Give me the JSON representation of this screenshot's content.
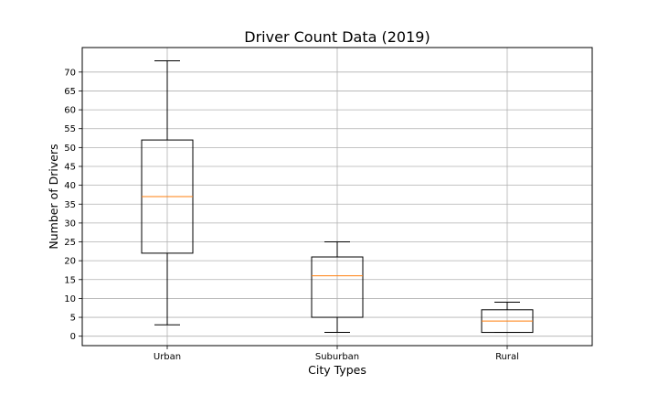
{
  "chart_data": {
    "type": "box",
    "title": "Driver Count Data (2019)",
    "xlabel": "City Types",
    "ylabel": "Number of Drivers",
    "ylim": [
      -2.5,
      76.5
    ],
    "yticks": [
      0,
      5,
      10,
      15,
      20,
      25,
      30,
      35,
      40,
      45,
      50,
      55,
      60,
      65,
      70
    ],
    "grid": true,
    "categories": [
      "Urban",
      "Suburban",
      "Rural"
    ],
    "boxes": [
      {
        "category": "Urban",
        "whisker_low": 3,
        "q1": 22,
        "median": 37,
        "q3": 52,
        "whisker_high": 73
      },
      {
        "category": "Suburban",
        "whisker_low": 1,
        "q1": 5,
        "median": 16,
        "q3": 21,
        "whisker_high": 25
      },
      {
        "category": "Rural",
        "whisker_low": 1,
        "q1": 1,
        "median": 4,
        "q3": 7,
        "whisker_high": 9
      }
    ],
    "colors": {
      "box": "#000000",
      "median": "#ff7f0e",
      "grid": "#b0b0b0"
    }
  }
}
